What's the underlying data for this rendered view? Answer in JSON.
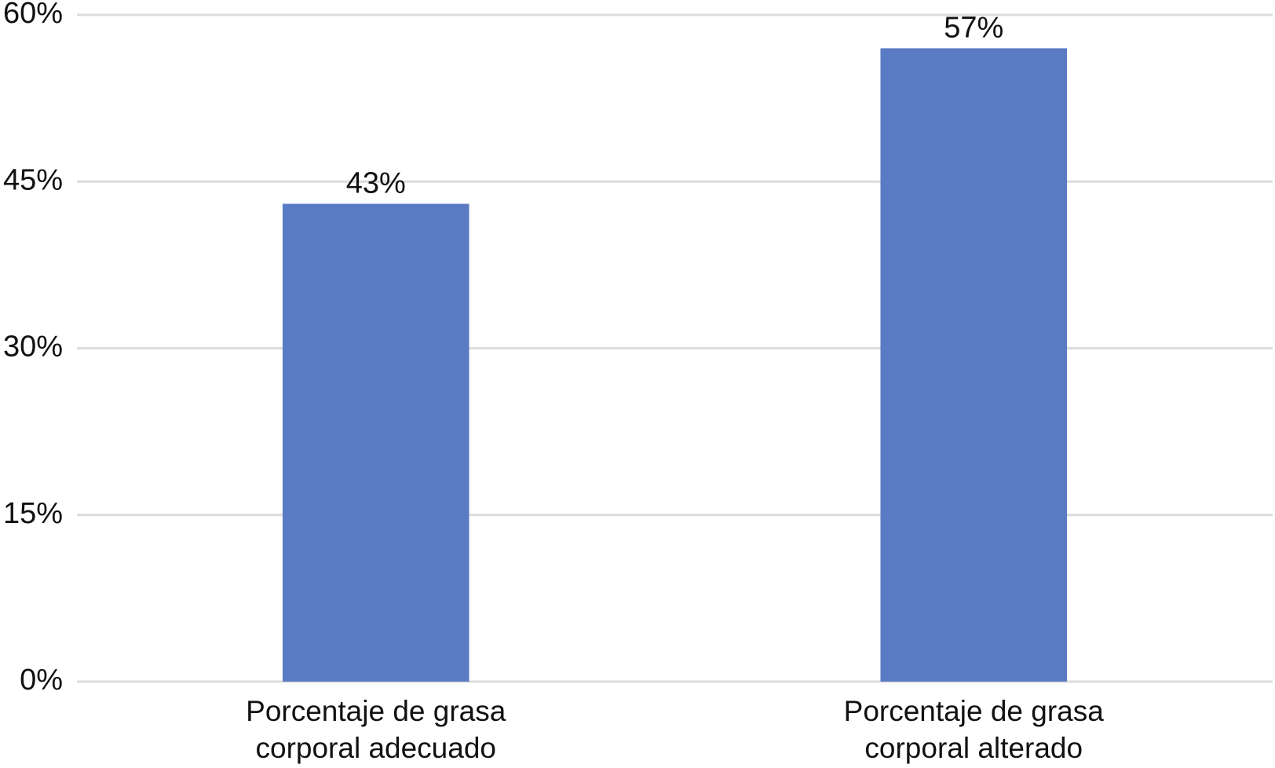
{
  "chart_data": {
    "type": "bar",
    "categories": [
      "Porcentaje de grasa corporal adecuado",
      "Porcentaje de grasa corporal alterado"
    ],
    "values": [
      43,
      57
    ],
    "value_labels": [
      "43%",
      "57%"
    ],
    "color": "#5a7bc3",
    "ylim": [
      0,
      60
    ],
    "yticks": [
      {
        "value": 0,
        "label": "0%"
      },
      {
        "value": 15,
        "label": "15%"
      },
      {
        "value": 30,
        "label": "30%"
      },
      {
        "value": 45,
        "label": "45%"
      },
      {
        "value": 60,
        "label": "60%"
      }
    ],
    "grid": true
  }
}
